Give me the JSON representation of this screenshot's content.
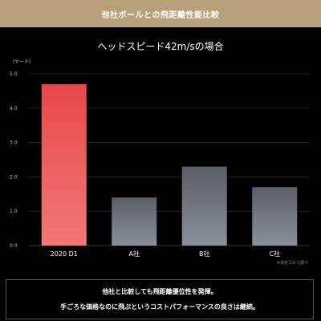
{
  "header": {
    "title": "他社ボールとの飛距離性能比較"
  },
  "note": "※本社ゴルフ調べ",
  "summary": {
    "line1": "他社と比較しても飛距離優位性を発揮。",
    "line2": "手ごろな価格なのに飛ぶというコストパフォーマンスの良さは継続。"
  },
  "chart_data": {
    "type": "bar",
    "title": "ヘッドスピード42m/sの場合",
    "ylabel": "（ヤード）",
    "xlabel": "",
    "categories": [
      "2020 D1",
      "A社",
      "B社",
      "C社"
    ],
    "values": [
      4.7,
      1.4,
      2.3,
      1.7
    ],
    "ylim": [
      0,
      5.0
    ],
    "yticks": [
      "0.0",
      "1.0",
      "2.0",
      "3.0",
      "4.0",
      "5.0"
    ],
    "grid": true,
    "colors": {
      "highlight_top": "#e84848",
      "highlight_bottom": "#f07878",
      "other_top": "#5a5e66",
      "other_bottom": "#8a9099",
      "grid": "#3a3a3a"
    }
  }
}
